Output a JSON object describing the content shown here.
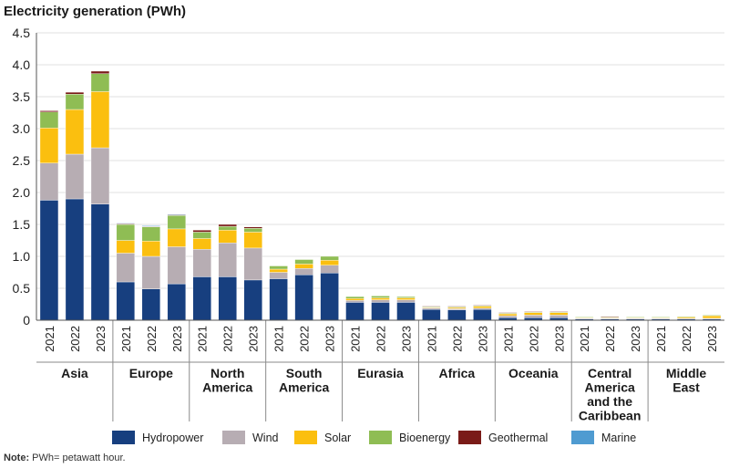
{
  "chart_data": {
    "type": "stacked-bar",
    "title": "Electricity generation (PWh)",
    "ylim": [
      0,
      4.5
    ],
    "yticks": [
      "4.5",
      "4.0",
      "3.5",
      "3.0",
      "2.5",
      "2.0",
      "1.5",
      "1.0",
      "0.5",
      "0"
    ],
    "ytick_values": [
      4.5,
      4.0,
      3.5,
      3.0,
      2.5,
      2.0,
      1.5,
      1.0,
      0.5,
      0
    ],
    "years": [
      "2021",
      "2022",
      "2023"
    ],
    "regions": [
      {
        "name": "Asia",
        "lines": [
          "Asia"
        ]
      },
      {
        "name": "Europe",
        "lines": [
          "Europe"
        ]
      },
      {
        "name": "North America",
        "lines": [
          "North",
          "America"
        ]
      },
      {
        "name": "South America",
        "lines": [
          "South",
          "America"
        ]
      },
      {
        "name": "Eurasia",
        "lines": [
          "Eurasia"
        ]
      },
      {
        "name": "Africa",
        "lines": [
          "Africa"
        ]
      },
      {
        "name": "Oceania",
        "lines": [
          "Oceania"
        ]
      },
      {
        "name": "Central America and the Caribbean",
        "lines": [
          "Central",
          "America",
          "and the",
          "Caribbean"
        ]
      },
      {
        "name": "Middle East",
        "lines": [
          "Middle",
          "East"
        ]
      }
    ],
    "series": [
      {
        "name": "Hydropower",
        "color": "#173f7f",
        "values": [
          1.88,
          1.9,
          1.82,
          0.6,
          0.49,
          0.57,
          0.68,
          0.68,
          0.63,
          0.65,
          0.71,
          0.74,
          0.28,
          0.28,
          0.28,
          0.17,
          0.16,
          0.17,
          0.04,
          0.04,
          0.04,
          0.02,
          0.02,
          0.02,
          0.02,
          0.02,
          0.02
        ]
      },
      {
        "name": "Wind",
        "color": "#b7adb3",
        "values": [
          0.58,
          0.7,
          0.88,
          0.45,
          0.51,
          0.58,
          0.43,
          0.53,
          0.5,
          0.1,
          0.1,
          0.12,
          0.03,
          0.04,
          0.04,
          0.02,
          0.02,
          0.02,
          0.03,
          0.04,
          0.04,
          0.01,
          0.01,
          0.01,
          0.01,
          0.01,
          0.01
        ]
      },
      {
        "name": "Solar",
        "color": "#fbbf0f",
        "values": [
          0.55,
          0.7,
          0.88,
          0.2,
          0.24,
          0.28,
          0.17,
          0.2,
          0.25,
          0.05,
          0.07,
          0.08,
          0.03,
          0.03,
          0.03,
          0.01,
          0.02,
          0.03,
          0.03,
          0.04,
          0.04,
          0.01,
          0.01,
          0.01,
          0.01,
          0.02,
          0.04
        ]
      },
      {
        "name": "Bioenergy",
        "color": "#8fbd54",
        "values": [
          0.25,
          0.24,
          0.28,
          0.25,
          0.22,
          0.21,
          0.1,
          0.06,
          0.06,
          0.05,
          0.07,
          0.06,
          0.03,
          0.03,
          0.02,
          0.01,
          0.01,
          0.01,
          0.01,
          0.01,
          0.01,
          0.01,
          0.01,
          0.01,
          0.01,
          0.01,
          0.01
        ]
      },
      {
        "name": "Geothermal",
        "color": "#7a1b18",
        "values": [
          0.02,
          0.03,
          0.04,
          0.01,
          0.01,
          0.01,
          0.03,
          0.03,
          0.02,
          0.0,
          0.0,
          0.0,
          0.0,
          0.0,
          0.0,
          0.01,
          0.01,
          0.01,
          0.01,
          0.01,
          0.01,
          0.0,
          0.01,
          0.0,
          0.0,
          0.0,
          0.0
        ]
      },
      {
        "name": "Marine",
        "color": "#4f9bd1",
        "values": [
          0.0,
          0.0,
          0.0,
          0.01,
          0.01,
          0.01,
          0.0,
          0.0,
          0.0,
          0.0,
          0.0,
          0.0,
          0.0,
          0.0,
          0.0,
          0.0,
          0.0,
          0.0,
          0.0,
          0.0,
          0.0,
          0.0,
          0.0,
          0.0,
          0.0,
          0.0,
          0.0
        ]
      }
    ]
  },
  "note": {
    "label": "Note:",
    "text": " PWh= petawatt hour."
  }
}
